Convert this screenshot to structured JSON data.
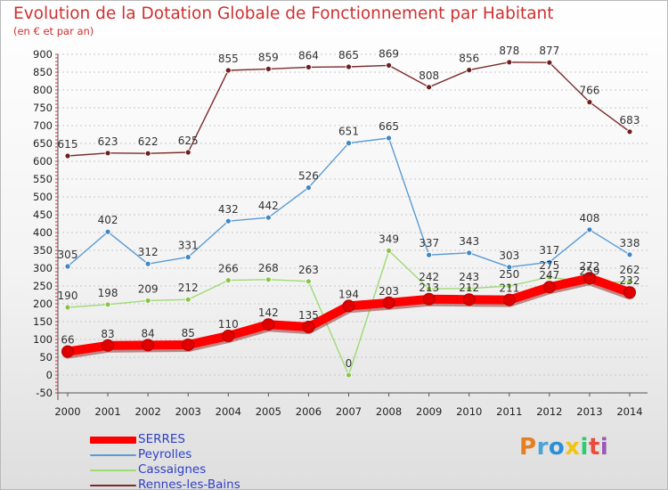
{
  "header": {
    "title": "Evolution de la Dotation Globale de Fonctionnement par Habitant",
    "subtitle": "(en € et par an)"
  },
  "logo": {
    "text": "Proxiti",
    "letters": [
      "P",
      "r",
      "o",
      "x",
      "i",
      "t",
      "i"
    ],
    "colors": [
      "#e67e22",
      "#4aa3d8",
      "#2b8fd6",
      "#f1c40f",
      "#2ecc71",
      "#e74c3c",
      "#9b59b6"
    ]
  },
  "chart_data": {
    "type": "line",
    "title": "Evolution de la Dotation Globale de Fonctionnement par Habitant",
    "subtitle": "(en € et par an)",
    "xlabel": "",
    "ylabel": "",
    "x": [
      "2000",
      "2001",
      "2002",
      "2003",
      "2004",
      "2005",
      "2006",
      "2007",
      "2008",
      "2009",
      "2010",
      "2011",
      "2012",
      "2013",
      "2014"
    ],
    "ylim": [
      -50,
      900
    ],
    "yticks": [
      "-50",
      "0",
      "50",
      "100",
      "150",
      "200",
      "250",
      "300",
      "350",
      "400",
      "450",
      "500",
      "550",
      "600",
      "650",
      "700",
      "750",
      "800",
      "850",
      "900"
    ],
    "grid": "horizontal dotted",
    "legend": "bottom-left",
    "series": [
      {
        "name": "SERRES",
        "color": "#ff0000",
        "values": [
          66,
          83,
          84,
          85,
          110,
          142,
          135,
          194,
          203,
          213,
          212,
          211,
          247,
          272,
          232
        ],
        "labels": [
          "66",
          "83",
          "84",
          "85",
          "110",
          "142",
          "135",
          "194",
          "203",
          "213",
          "212",
          "211",
          "247",
          "272",
          "232"
        ],
        "marker_color": "#e00000",
        "width": 10
      },
      {
        "name": "Peyrolles",
        "color": "#5b9bd5",
        "values": [
          305,
          402,
          312,
          331,
          432,
          442,
          526,
          651,
          665,
          337,
          343,
          303,
          317,
          408,
          338
        ],
        "labels": [
          "305",
          "402",
          "312",
          "331",
          "432",
          "442",
          "526",
          "651",
          "665",
          "337",
          "343",
          "303",
          "317",
          "408",
          "338"
        ],
        "marker_color": "#3f86c4",
        "width": 1.4
      },
      {
        "name": "Cassaignes",
        "color": "#9ddb73",
        "values": [
          190,
          198,
          209,
          212,
          266,
          268,
          263,
          0,
          349,
          242,
          243,
          250,
          275,
          259,
          262
        ],
        "labels": [
          "190",
          "198",
          "209",
          "212",
          "266",
          "268",
          "263",
          "0",
          "349",
          "242",
          "243",
          "250",
          "275",
          "259",
          "262"
        ],
        "marker_color": "#8bc34a",
        "width": 1.4
      },
      {
        "name": "Rennes-les-Bains",
        "color": "#7b2b2b",
        "values": [
          615,
          623,
          622,
          625,
          855,
          859,
          864,
          865,
          869,
          808,
          856,
          878,
          877,
          766,
          683
        ],
        "labels": [
          "615",
          "623",
          "622",
          "625",
          "855",
          "859",
          "864",
          "865",
          "869",
          "808",
          "856",
          "878",
          "877",
          "766",
          "683"
        ],
        "marker_color": "#6b1f1f",
        "width": 1.4
      }
    ]
  }
}
